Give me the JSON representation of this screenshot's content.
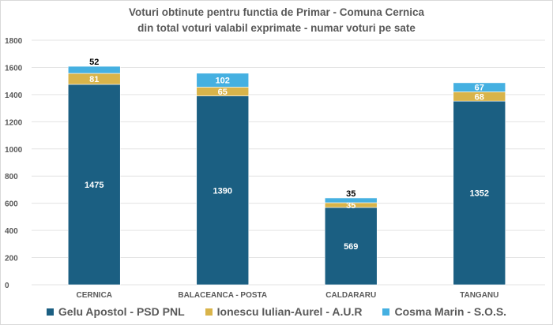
{
  "chart_data": {
    "type": "bar",
    "stacked": true,
    "title": "Voturi obtinute pentru functia de Primar - Comuna Cernica",
    "subtitle": "din total voturi valabil exprimate - numar voturi pe sate",
    "categories": [
      "CERNICA",
      "BALACEANCA - POSTA",
      "CALDARARU",
      "TANGANU"
    ],
    "series": [
      {
        "name": "Gelu Apostol - PSD PNL",
        "values": [
          1475,
          1390,
          569,
          1352
        ],
        "color": "#1b5f82"
      },
      {
        "name": "Ionescu Iulian-Aurel - A.U.R",
        "values": [
          81,
          65,
          35,
          68
        ],
        "color": "#d9b44a"
      },
      {
        "name": "Cosma Marin - S.O.S.",
        "values": [
          52,
          102,
          35,
          67
        ],
        "color": "#45b0e1"
      }
    ],
    "ylim": [
      0,
      1800
    ],
    "yticks": [
      0,
      200,
      400,
      600,
      800,
      1000,
      1200,
      1400,
      1600,
      1800
    ],
    "grid": true,
    "legend": "bottom",
    "xlabel": "",
    "ylabel": ""
  }
}
